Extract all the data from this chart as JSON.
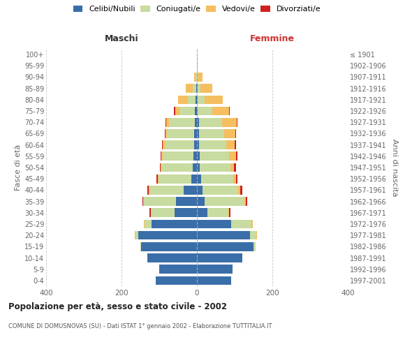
{
  "age_groups": [
    "100+",
    "95-99",
    "90-94",
    "85-89",
    "80-84",
    "75-79",
    "70-74",
    "65-69",
    "60-64",
    "55-59",
    "50-54",
    "45-49",
    "40-44",
    "35-39",
    "30-34",
    "25-29",
    "20-24",
    "15-19",
    "10-14",
    "5-9",
    "0-4"
  ],
  "birth_years": [
    "≤ 1901",
    "1902-1906",
    "1907-1911",
    "1912-1916",
    "1917-1921",
    "1922-1926",
    "1927-1931",
    "1932-1936",
    "1937-1941",
    "1942-1946",
    "1947-1951",
    "1952-1956",
    "1957-1961",
    "1962-1966",
    "1967-1971",
    "1972-1976",
    "1977-1981",
    "1982-1986",
    "1987-1991",
    "1992-1996",
    "1997-2001"
  ],
  "maschi": {
    "celibi": [
      0,
      0,
      0,
      2,
      3,
      5,
      6,
      7,
      8,
      9,
      12,
      14,
      35,
      55,
      60,
      120,
      155,
      148,
      132,
      100,
      110
    ],
    "coniugati": [
      0,
      0,
      3,
      10,
      22,
      42,
      68,
      72,
      78,
      82,
      82,
      87,
      90,
      85,
      62,
      18,
      8,
      2,
      0,
      0,
      0
    ],
    "vedovi": [
      0,
      0,
      4,
      18,
      25,
      10,
      8,
      5,
      4,
      3,
      2,
      2,
      2,
      2,
      1,
      2,
      2,
      0,
      0,
      0,
      0
    ],
    "divorziati": [
      0,
      0,
      0,
      0,
      0,
      4,
      2,
      2,
      3,
      3,
      2,
      4,
      5,
      3,
      2,
      0,
      0,
      0,
      0,
      0,
      0
    ]
  },
  "femmine": {
    "nubili": [
      0,
      0,
      0,
      2,
      2,
      2,
      5,
      5,
      6,
      7,
      8,
      12,
      15,
      20,
      28,
      90,
      140,
      150,
      120,
      95,
      90
    ],
    "coniugate": [
      0,
      0,
      2,
      8,
      18,
      38,
      62,
      68,
      72,
      78,
      80,
      85,
      95,
      105,
      55,
      55,
      18,
      5,
      0,
      0,
      0
    ],
    "vedove": [
      0,
      2,
      12,
      30,
      48,
      45,
      38,
      28,
      22,
      18,
      10,
      6,
      5,
      5,
      3,
      3,
      2,
      0,
      0,
      0,
      0
    ],
    "divorziate": [
      0,
      0,
      0,
      0,
      0,
      2,
      2,
      2,
      4,
      5,
      5,
      5,
      5,
      4,
      3,
      0,
      0,
      0,
      0,
      0,
      0
    ]
  },
  "colors": {
    "celibi": "#3a6ea8",
    "coniugati": "#c8dba0",
    "vedovi": "#f5be60",
    "divorziati": "#cc2222"
  },
  "title": "Popolazione per età, sesso e stato civile - 2002",
  "subtitle": "COMUNE DI DOMUSNOVAS (SU) - Dati ISTAT 1° gennaio 2002 - Elaborazione TUTTITALIA.IT",
  "label_maschi": "Maschi",
  "label_femmine": "Femmine",
  "ylabel_left": "Fasce di età",
  "ylabel_right": "Anni di nascita",
  "xlim": 400,
  "legend_labels": [
    "Celibi/Nubili",
    "Coniugati/e",
    "Vedovi/e",
    "Divorziati/e"
  ],
  "bg_color": "#ffffff",
  "grid_color": "#c8c8c8"
}
